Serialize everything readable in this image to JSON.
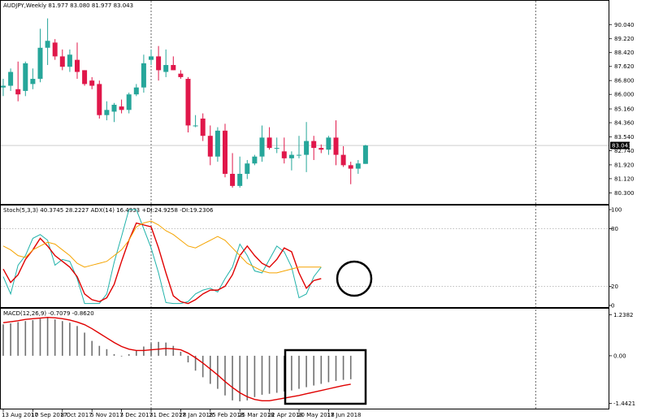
{
  "colors": {
    "bull": "#26a69a",
    "bear": "#e0174a",
    "stoch_main": "#20b2aa",
    "stoch_signal": "#e00000",
    "adx": "#f5a400",
    "macd_hist": "#707070",
    "macd_signal": "#e00000",
    "grid": "#000000",
    "annotation": "#000000"
  },
  "chart_data": [
    {
      "type": "candlestick",
      "title": "AUDJPY,Weekly  81.977 83.080 81.977 83.043",
      "last_price_label": "83.043",
      "last_price": 83.043,
      "ylim": [
        79.8,
        90.9
      ],
      "price_axis_ticks": [
        "90.040",
        "89.220",
        "88.420",
        "87.620",
        "86.800",
        "86.000",
        "85.160",
        "84.360",
        "83.540",
        "82.740",
        "81.920",
        "81.120",
        "80.300"
      ],
      "x_labels": [
        "13 Aug 2017",
        "10 Sep 2017",
        "8 Oct 2017",
        "5 Nov 2017",
        "3 Dec 2017",
        "31 Dec 2017",
        "28 Jan 2018",
        "25 Feb 2018",
        "25 Mar 2018",
        "22 Apr 2018",
        "20 May 2018",
        "17 Jun 2018"
      ],
      "x_label_index": [
        0,
        4,
        8,
        12,
        16,
        20,
        24,
        28,
        32,
        36,
        40,
        44
      ],
      "vlines_index": [
        20,
        72
      ],
      "candles": [
        {
          "o": 86.4,
          "h": 86.9,
          "l": 85.9,
          "c": 86.5
        },
        {
          "o": 86.5,
          "h": 87.5,
          "l": 86.2,
          "c": 87.3
        },
        {
          "o": 86.3,
          "h": 87.9,
          "l": 85.6,
          "c": 86.0
        },
        {
          "o": 86.2,
          "h": 87.9,
          "l": 85.9,
          "c": 87.8
        },
        {
          "o": 86.6,
          "h": 87.5,
          "l": 86.3,
          "c": 86.9
        },
        {
          "o": 86.9,
          "h": 89.8,
          "l": 86.7,
          "c": 88.7
        },
        {
          "o": 88.7,
          "h": 90.4,
          "l": 87.7,
          "c": 89.1
        },
        {
          "o": 89.0,
          "h": 89.2,
          "l": 88.0,
          "c": 88.2
        },
        {
          "o": 88.2,
          "h": 88.6,
          "l": 87.4,
          "c": 87.6
        },
        {
          "o": 87.6,
          "h": 88.6,
          "l": 87.3,
          "c": 88.3
        },
        {
          "o": 88.0,
          "h": 89.0,
          "l": 86.9,
          "c": 87.3
        },
        {
          "o": 87.4,
          "h": 87.4,
          "l": 86.5,
          "c": 86.6
        },
        {
          "o": 86.8,
          "h": 87.0,
          "l": 86.3,
          "c": 86.5
        },
        {
          "o": 86.6,
          "h": 86.8,
          "l": 84.6,
          "c": 84.8
        },
        {
          "o": 84.8,
          "h": 85.6,
          "l": 84.5,
          "c": 85.1
        },
        {
          "o": 85.0,
          "h": 85.5,
          "l": 84.4,
          "c": 85.4
        },
        {
          "o": 85.3,
          "h": 85.7,
          "l": 84.9,
          "c": 85.1
        },
        {
          "o": 85.1,
          "h": 86.1,
          "l": 84.9,
          "c": 86.0
        },
        {
          "o": 86.0,
          "h": 86.6,
          "l": 85.9,
          "c": 86.4
        },
        {
          "o": 86.4,
          "h": 88.3,
          "l": 86.1,
          "c": 87.8
        },
        {
          "o": 88.0,
          "h": 88.6,
          "l": 87.7,
          "c": 88.2
        },
        {
          "o": 88.2,
          "h": 88.8,
          "l": 86.8,
          "c": 87.4
        },
        {
          "o": 87.3,
          "h": 88.6,
          "l": 87.0,
          "c": 87.7
        },
        {
          "o": 87.7,
          "h": 88.2,
          "l": 87.4,
          "c": 87.4
        },
        {
          "o": 87.2,
          "h": 87.4,
          "l": 86.9,
          "c": 87.0
        },
        {
          "o": 86.9,
          "h": 87.0,
          "l": 83.8,
          "c": 84.2
        },
        {
          "o": 84.2,
          "h": 84.8,
          "l": 84.1,
          "c": 84.2
        },
        {
          "o": 84.6,
          "h": 84.9,
          "l": 83.3,
          "c": 83.6
        },
        {
          "o": 83.6,
          "h": 84.2,
          "l": 81.9,
          "c": 82.4
        },
        {
          "o": 82.4,
          "h": 84.1,
          "l": 82.1,
          "c": 83.9
        },
        {
          "o": 83.9,
          "h": 84.3,
          "l": 81.2,
          "c": 81.4
        },
        {
          "o": 81.4,
          "h": 82.6,
          "l": 80.6,
          "c": 80.7
        },
        {
          "o": 80.7,
          "h": 82.4,
          "l": 80.6,
          "c": 81.4
        },
        {
          "o": 81.4,
          "h": 82.2,
          "l": 81.1,
          "c": 82.0
        },
        {
          "o": 82.0,
          "h": 82.5,
          "l": 81.9,
          "c": 82.4
        },
        {
          "o": 82.4,
          "h": 84.2,
          "l": 82.1,
          "c": 83.5
        },
        {
          "o": 83.5,
          "h": 84.1,
          "l": 82.8,
          "c": 82.9
        },
        {
          "o": 82.9,
          "h": 83.5,
          "l": 82.6,
          "c": 82.9
        },
        {
          "o": 82.7,
          "h": 83.5,
          "l": 82.0,
          "c": 82.3
        },
        {
          "o": 82.3,
          "h": 82.7,
          "l": 81.6,
          "c": 82.5
        },
        {
          "o": 82.5,
          "h": 83.6,
          "l": 82.3,
          "c": 82.5
        },
        {
          "o": 82.5,
          "h": 84.4,
          "l": 81.5,
          "c": 83.3
        },
        {
          "o": 83.3,
          "h": 83.6,
          "l": 82.2,
          "c": 82.9
        },
        {
          "o": 82.9,
          "h": 83.1,
          "l": 82.6,
          "c": 82.8
        },
        {
          "o": 82.8,
          "h": 83.6,
          "l": 82.5,
          "c": 83.5
        },
        {
          "o": 83.5,
          "h": 84.5,
          "l": 81.9,
          "c": 82.5
        },
        {
          "o": 82.5,
          "h": 83.0,
          "l": 81.8,
          "c": 81.9
        },
        {
          "o": 81.9,
          "h": 82.1,
          "l": 80.8,
          "c": 81.7
        },
        {
          "o": 81.7,
          "h": 82.2,
          "l": 81.4,
          "c": 82.0
        },
        {
          "o": 81.977,
          "h": 83.08,
          "l": 81.977,
          "c": 83.043
        }
      ]
    },
    {
      "type": "line",
      "title": "Stoch(5,3,3) 40.3745 28.2227  ADX(14) 16.4933 +DI:24.9258 -DI:19.2306",
      "ylim": [
        0,
        100
      ],
      "ticks": [
        {
          "value": 100,
          "label": "100"
        },
        {
          "value": 80,
          "label": "80"
        },
        {
          "value": 20,
          "label": "20"
        },
        {
          "value": 0,
          "label": "0"
        }
      ],
      "levels": [
        80,
        20
      ],
      "series": [
        {
          "values": [
            30,
            12,
            42,
            52,
            70,
            74,
            68,
            42,
            48,
            46,
            28,
            2,
            2,
            2,
            12,
            45,
            72,
            100,
            100,
            80,
            60,
            34,
            3,
            2,
            2,
            4,
            12,
            16,
            18,
            14,
            28,
            40,
            64,
            52,
            36,
            34,
            48,
            62,
            56,
            40,
            8,
            12,
            30,
            40
          ]
        },
        {
          "values": [
            38,
            24,
            32,
            48,
            58,
            70,
            62,
            52,
            46,
            40,
            30,
            12,
            6,
            4,
            8,
            22,
            46,
            68,
            86,
            84,
            82,
            60,
            34,
            10,
            4,
            2,
            6,
            12,
            16,
            16,
            20,
            32,
            52,
            62,
            52,
            44,
            40,
            48,
            60,
            56,
            34,
            18,
            26,
            28
          ]
        },
        {
          "values": [
            62,
            58,
            52,
            50,
            58,
            62,
            66,
            64,
            58,
            52,
            44,
            40,
            42,
            44,
            46,
            52,
            58,
            68,
            82,
            86,
            88,
            84,
            78,
            74,
            68,
            62,
            60,
            64,
            68,
            72,
            68,
            60,
            52,
            44,
            40,
            36,
            34,
            34,
            36,
            38,
            40,
            40,
            40,
            40
          ]
        }
      ]
    },
    {
      "type": "bar",
      "title": "MACD(12,26,9) -0.7079 -0.8620",
      "ylim": [
        -1.55,
        1.35
      ],
      "ticks": [
        {
          "value": 1.2382,
          "label": "1.2382"
        },
        {
          "value": 0,
          "label": "0.00"
        },
        {
          "value": -1.4421,
          "label": "-1.4421"
        }
      ],
      "x_labels": [
        "13 Aug 2017",
        "10 Sep 2017",
        "8 Oct 2017",
        "5 Nov 2017",
        "3 Dec 2017",
        "31 Dec 2017",
        "28 Jan 2018",
        "25 Feb 2018",
        "25 Mar 2018",
        "22 Apr 2018",
        "20 May 2018",
        "17 Jun 2018"
      ],
      "series": [
        {
          "values": [
            0.95,
            0.98,
            1.02,
            1.05,
            1.08,
            1.12,
            1.15,
            1.1,
            1.05,
            1.0,
            0.9,
            0.7,
            0.45,
            0.3,
            0.2,
            0.05,
            -0.02,
            0.05,
            0.15,
            0.28,
            0.38,
            0.42,
            0.4,
            0.3,
            0.12,
            -0.2,
            -0.45,
            -0.65,
            -0.85,
            -1.0,
            -1.2,
            -1.35,
            -1.38,
            -1.35,
            -1.25,
            -1.18,
            -1.15,
            -1.12,
            -1.08,
            -1.05,
            -1.0,
            -0.95,
            -0.9,
            -0.85,
            -0.8,
            -0.76,
            -0.73,
            -0.71
          ]
        },
        {
          "values": [
            1.0,
            1.03,
            1.06,
            1.1,
            1.12,
            1.14,
            1.16,
            1.15,
            1.12,
            1.08,
            1.02,
            0.94,
            0.82,
            0.68,
            0.54,
            0.4,
            0.28,
            0.2,
            0.16,
            0.16,
            0.18,
            0.2,
            0.22,
            0.21,
            0.18,
            0.08,
            -0.06,
            -0.22,
            -0.4,
            -0.58,
            -0.78,
            -0.96,
            -1.12,
            -1.24,
            -1.32,
            -1.36,
            -1.36,
            -1.32,
            -1.28,
            -1.24,
            -1.2,
            -1.15,
            -1.1,
            -1.05,
            -1.0,
            -0.95,
            -0.9,
            -0.86
          ]
        }
      ]
    }
  ]
}
